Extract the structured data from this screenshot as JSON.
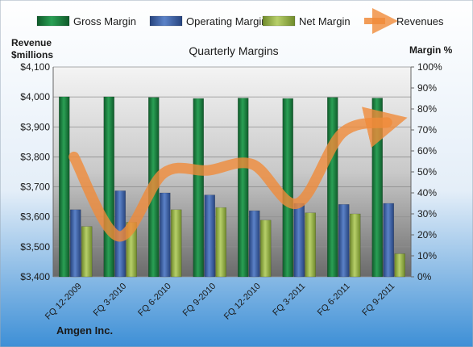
{
  "chart_data": {
    "type": "bar",
    "title": "Quarterly Margins",
    "categories": [
      "FQ 12-2009",
      "FQ 3-2010",
      "FQ 6-2010",
      "FQ 9-2010",
      "FQ 12-2010",
      "FQ 3-2011",
      "FQ 6-2011",
      "FQ 9-2011"
    ],
    "series": [
      {
        "name": "Gross Margin",
        "axis": "right",
        "type": "bar",
        "color": "#1f7a3e",
        "values": [
          85.8,
          85.8,
          85.5,
          85.0,
          85.2,
          85.0,
          85.5,
          85.2
        ]
      },
      {
        "name": "Operating Margin",
        "axis": "right",
        "type": "bar",
        "color": "#3e62a8",
        "values": [
          32,
          41,
          40,
          39,
          31.5,
          35,
          34.5,
          35
        ]
      },
      {
        "name": "Net Margin",
        "axis": "right",
        "type": "bar",
        "color": "#98b34a",
        "values": [
          24,
          26,
          32,
          33,
          27,
          30.5,
          30,
          11
        ]
      },
      {
        "name": "Revenues",
        "axis": "left",
        "type": "line",
        "color": "#f08b3a",
        "values": [
          3800,
          3535,
          3745,
          3755,
          3775,
          3645,
          3880,
          3915
        ]
      }
    ],
    "left_axis": {
      "label_line1": "Revenue",
      "label_line2": "$millions",
      "min": 3400,
      "max": 4100,
      "step": 100,
      "ticks": [
        "$3,400",
        "$3,500",
        "$3,600",
        "$3,700",
        "$3,800",
        "$3,900",
        "$4,000",
        "$4,100"
      ]
    },
    "right_axis": {
      "label": "Margin %",
      "min": 0,
      "max": 100,
      "step": 10,
      "ticks": [
        "0%",
        "10%",
        "20%",
        "30%",
        "40%",
        "50%",
        "60%",
        "70%",
        "80%",
        "90%",
        "100%"
      ]
    },
    "legend_position": "top",
    "grid": true,
    "footer": "Amgen Inc."
  },
  "colors": {
    "background_top": "#ffffff",
    "background_bottom": "#3d8fd6",
    "plot_top": "#f2f2f2",
    "plot_bottom": "#6c6c6c",
    "grid": "#8a8a8a"
  }
}
